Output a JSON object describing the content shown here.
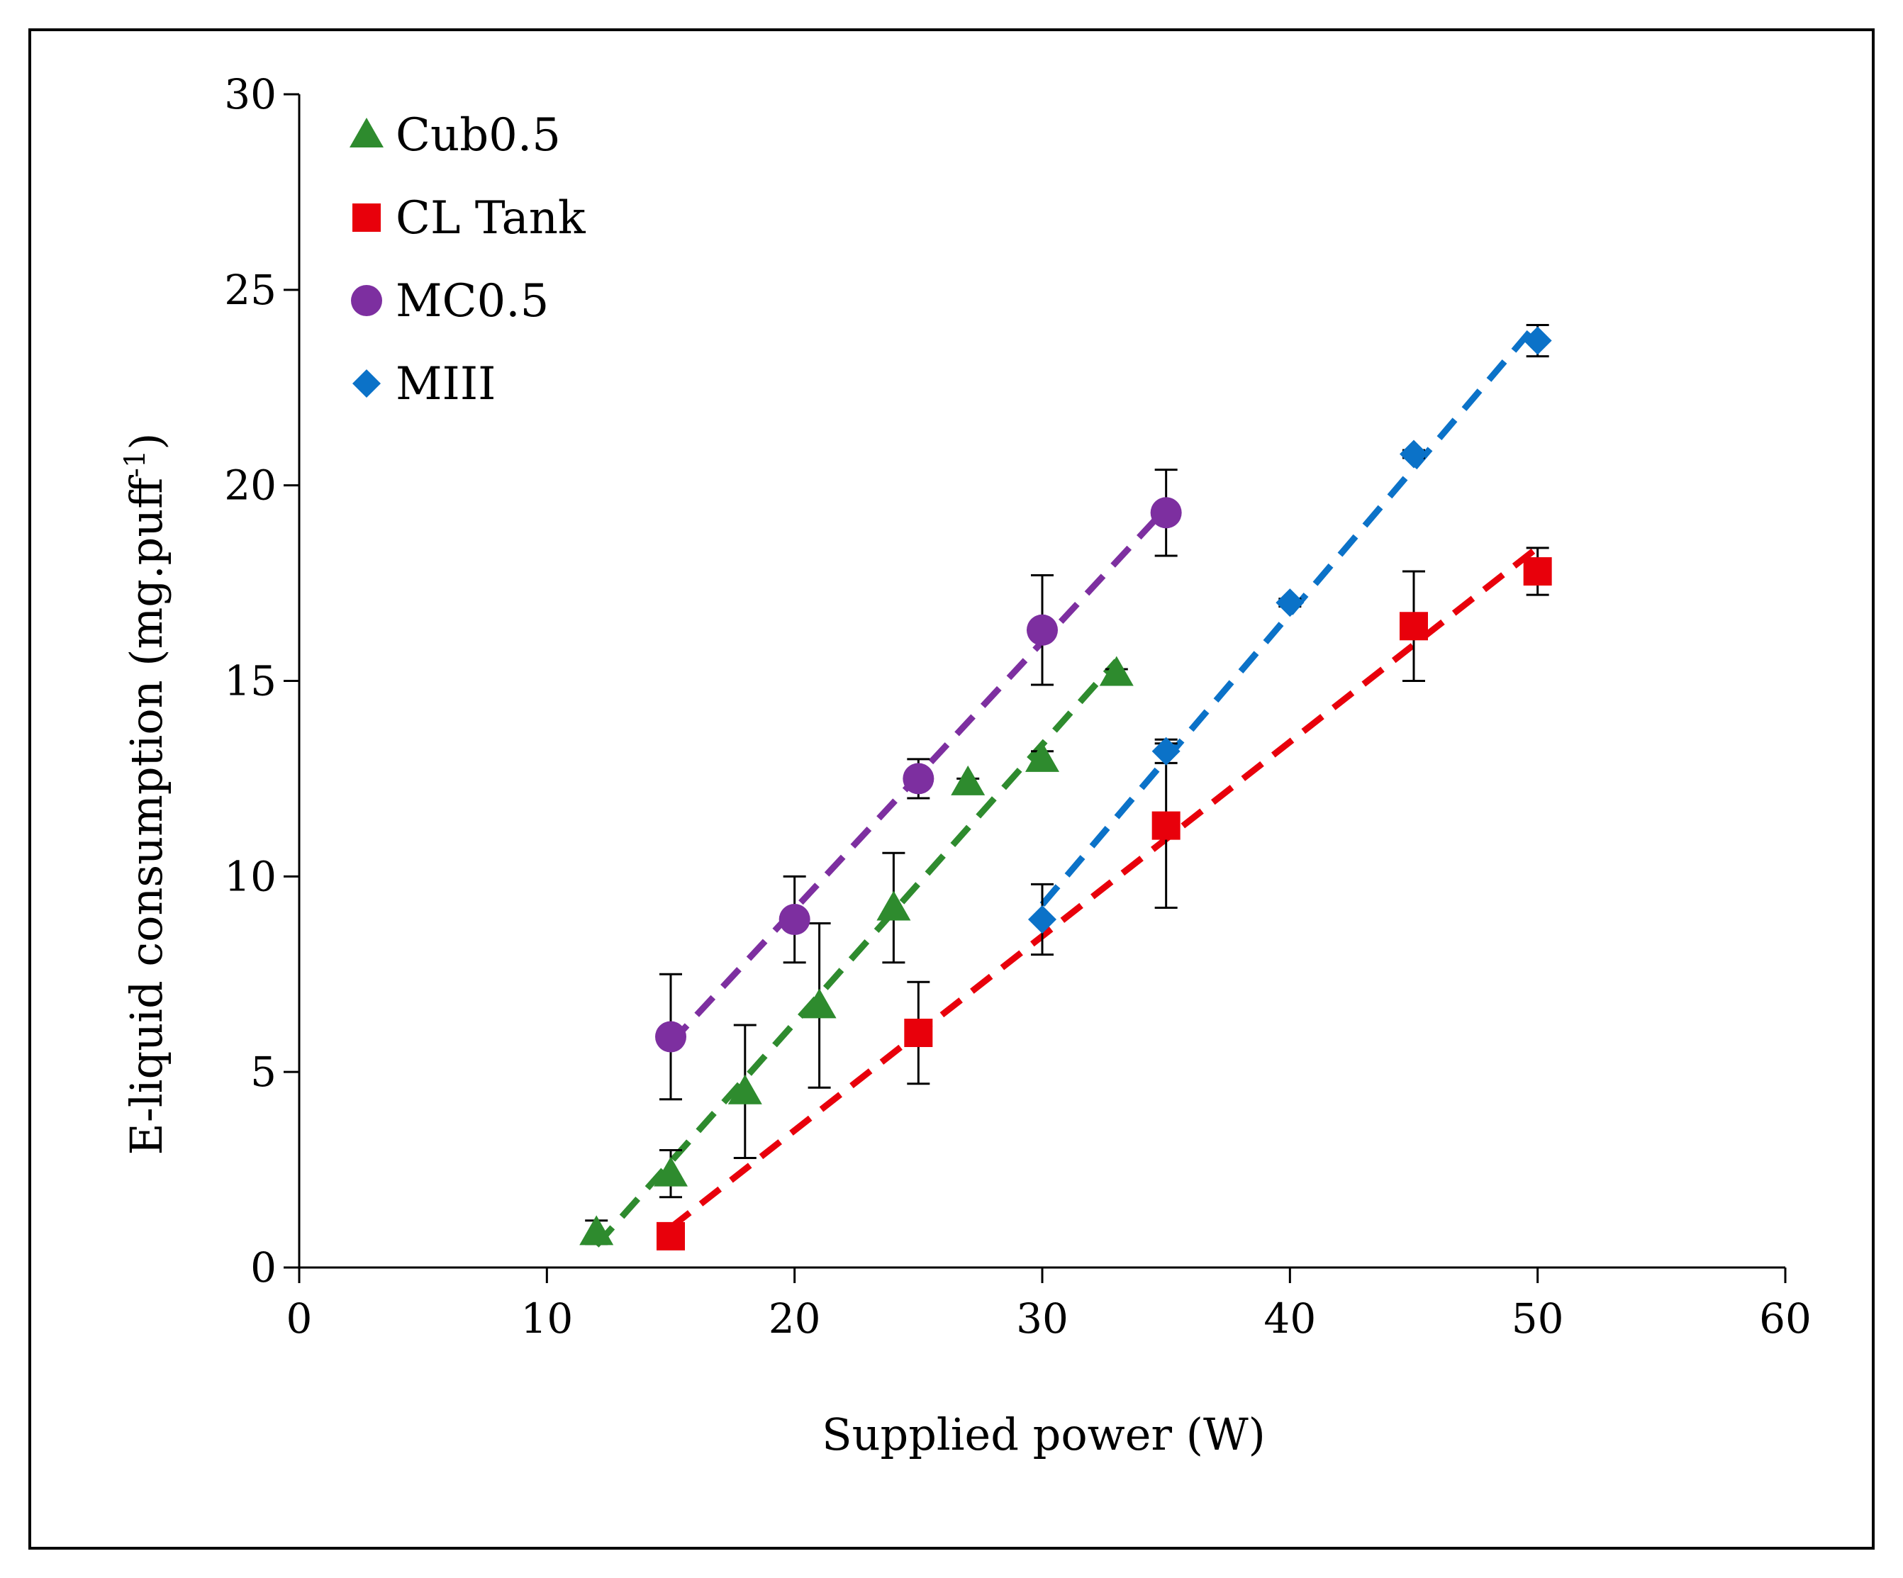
{
  "chart_data": {
    "type": "scatter",
    "title": "",
    "xlabel": "Supplied power (W)",
    "ylabel": "E-liquid consumption (mg.puff",
    "ylabel_superscript": "-1",
    "ylabel_close": ")",
    "xlim": [
      0,
      60
    ],
    "ylim": [
      0,
      30
    ],
    "xticks": [
      0,
      10,
      20,
      30,
      40,
      50,
      60
    ],
    "yticks": [
      0,
      5,
      10,
      15,
      20,
      25,
      30
    ],
    "grid": false,
    "legend_position": "top-left",
    "trendlines": "linear, dashed",
    "series": [
      {
        "name": "Cub0.5",
        "marker": "triangle",
        "color": "#2e8b2e",
        "x": [
          12,
          15,
          18,
          21,
          24,
          27,
          30,
          33
        ],
        "y": [
          0.9,
          2.4,
          4.5,
          6.7,
          9.2,
          12.4,
          13.0,
          15.2
        ],
        "err": [
          0.3,
          0.6,
          1.7,
          2.1,
          1.4,
          0.1,
          0.2,
          0.1
        ]
      },
      {
        "name": "CL Tank",
        "marker": "square",
        "color": "#e8000b",
        "x": [
          15,
          25,
          35,
          45,
          50
        ],
        "y": [
          0.8,
          6.0,
          11.3,
          16.4,
          17.8
        ],
        "err": [
          0.1,
          1.3,
          2.1,
          1.4,
          0.6
        ]
      },
      {
        "name": "MC0.5",
        "marker": "circle",
        "color": "#7d2fa0",
        "x": [
          15,
          20,
          25,
          30,
          35
        ],
        "y": [
          5.9,
          8.9,
          12.5,
          16.3,
          19.3
        ],
        "err": [
          1.6,
          1.1,
          0.5,
          1.4,
          1.1
        ]
      },
      {
        "name": "MIII",
        "marker": "diamond",
        "color": "#0b72c8",
        "x": [
          30,
          35,
          40,
          45,
          50
        ],
        "y": [
          8.9,
          13.2,
          17.0,
          20.8,
          23.7
        ],
        "err": [
          0.9,
          0.3,
          0.1,
          0.1,
          0.4
        ]
      }
    ]
  }
}
